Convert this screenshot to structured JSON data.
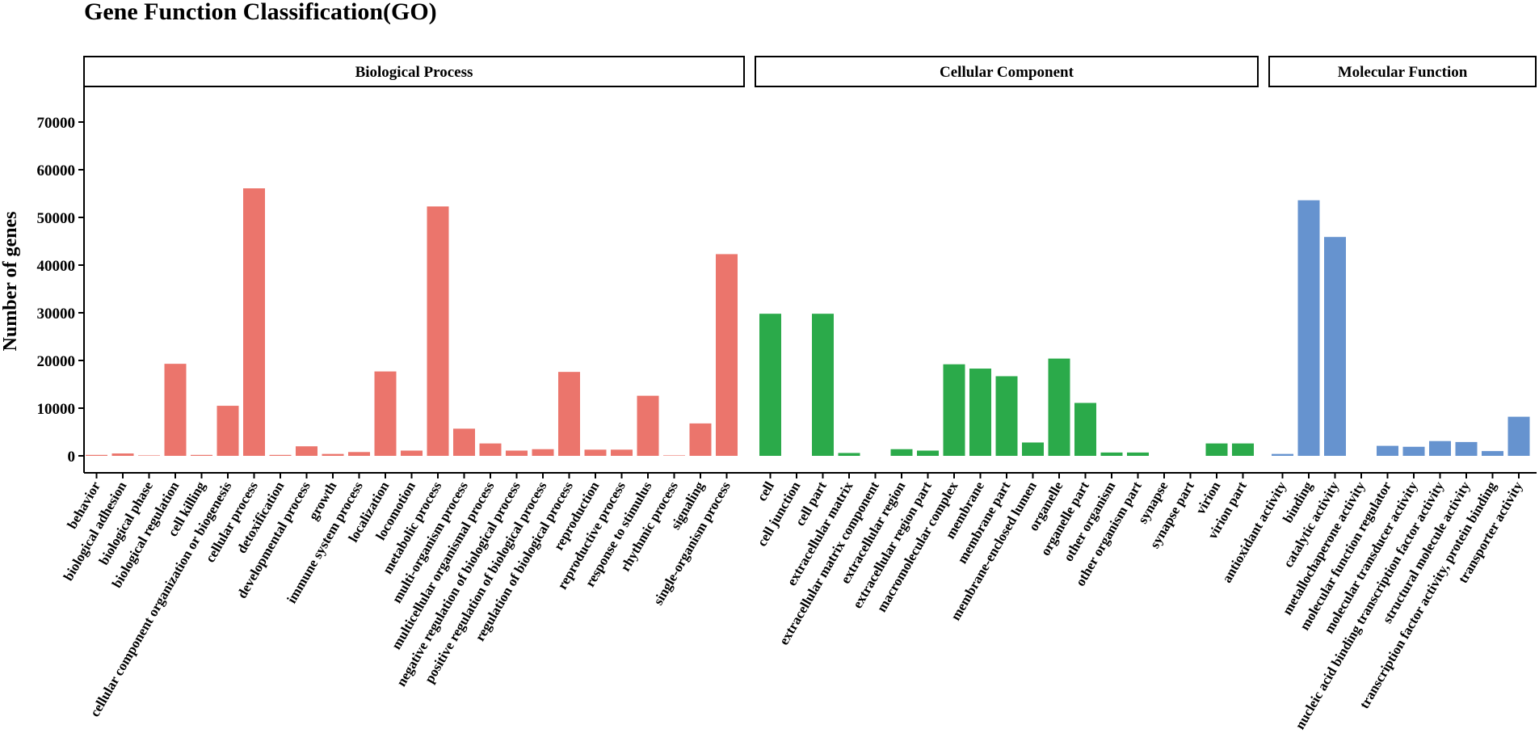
{
  "chart_data": {
    "type": "bar",
    "title": "Gene Function Classification(GO)",
    "xlabel": "",
    "ylabel": "Number of genes",
    "ylim": [
      0,
      77000
    ],
    "yticks": [
      0,
      10000,
      20000,
      30000,
      40000,
      50000,
      60000,
      70000
    ],
    "grid": false,
    "legend": "none",
    "facets": [
      {
        "name": "Biological Process",
        "color": "#EB756C",
        "categories": [
          "behavior",
          "biological adhesion",
          "biological phase",
          "biological regulation",
          "cell killing",
          "cellular component organization or biogenesis",
          "cellular process",
          "detoxification",
          "developmental process",
          "growth",
          "immune system process",
          "localization",
          "locomotion",
          "metabolic process",
          "multi-organism process",
          "multicellular organismal process",
          "negative regulation of biological process",
          "positive regulation of biological process",
          "regulation of biological process",
          "reproduction",
          "reproductive process",
          "response to stimulus",
          "rhythmic process",
          "signaling",
          "single-organism process"
        ],
        "values": [
          200,
          500,
          100,
          19300,
          200,
          10500,
          56100,
          200,
          2000,
          400,
          800,
          17700,
          1100,
          52300,
          5700,
          2600,
          1100,
          1400,
          17600,
          1300,
          1300,
          12600,
          100,
          6800,
          42300
        ]
      },
      {
        "name": "Cellular Component",
        "color": "#2BAA4A",
        "categories": [
          "cell",
          "cell junction",
          "cell part",
          "extracellular matrix",
          "extracellular matrix component",
          "extracellular region",
          "extracellular region part",
          "macromolecular complex",
          "membrane",
          "membrane part",
          "membrane-enclosed lumen",
          "organelle",
          "organelle part",
          "other organism",
          "other organism part",
          "synapse",
          "synapse part",
          "virion",
          "virion part"
        ],
        "values": [
          29800,
          0,
          29800,
          600,
          0,
          1400,
          1100,
          19200,
          18300,
          16700,
          2800,
          20400,
          11100,
          700,
          700,
          0,
          0,
          2600,
          2600
        ]
      },
      {
        "name": "Molecular Function",
        "color": "#6693CF",
        "categories": [
          "antioxidant activity",
          "binding",
          "catalytic activity",
          "metallochaperone activity",
          "molecular function regulator",
          "molecular transducer activity",
          "nucleic acid binding transcription factor activity",
          "structural molecule activity",
          "transcription factor activity, protein binding",
          "transporter activity"
        ],
        "values": [
          400,
          53600,
          45900,
          0,
          2100,
          1900,
          3100,
          2900,
          1000,
          8200
        ]
      }
    ]
  }
}
